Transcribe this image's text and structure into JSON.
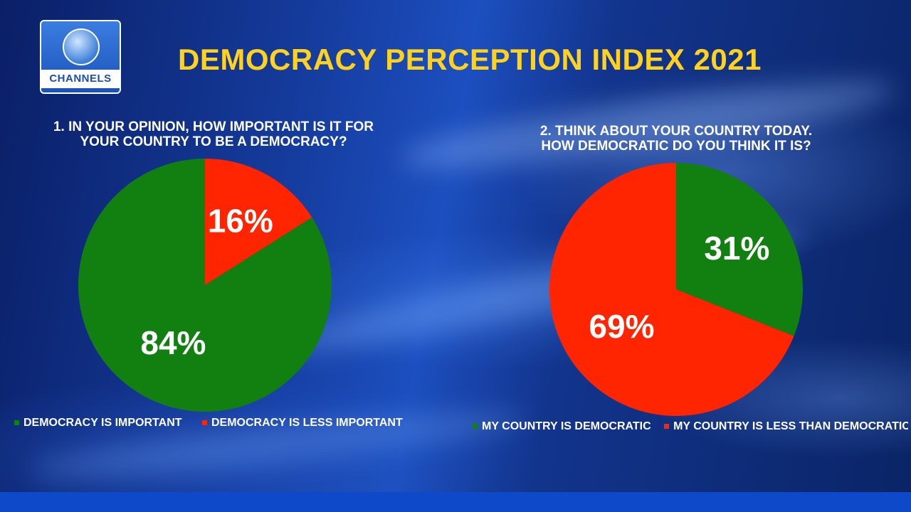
{
  "header": {
    "logo_text": "CHANNELS",
    "title": "DEMOCRACY PERCEPTION INDEX 2021"
  },
  "colors": {
    "title": "#ffd21f",
    "green": "#118011",
    "red": "#ff2500"
  },
  "chart_data": [
    {
      "type": "pie",
      "title": "1. IN YOUR OPINION, HOW IMPORTANT IS IT FOR YOUR COUNTRY TO BE A DEMOCRACY?",
      "title_lines": [
        "1. IN YOUR OPINION, HOW IMPORTANT IS IT FOR",
        "YOUR COUNTRY TO BE A DEMOCRACY?"
      ],
      "slices": [
        {
          "label": "DEMOCRACY IS LESS IMPORTANT",
          "value": 16,
          "value_label": "16%",
          "color": "#ff2500"
        },
        {
          "label": "DEMOCRACY IS IMPORTANT",
          "value": 84,
          "value_label": "84%",
          "color": "#118011"
        }
      ],
      "legend": [
        {
          "label": "DEMOCRACY IS IMPORTANT",
          "color": "#118011"
        },
        {
          "label": "DEMOCRACY IS LESS IMPORTANT",
          "color": "#ff2500"
        }
      ]
    },
    {
      "type": "pie",
      "title": "2. THINK ABOUT YOUR COUNTRY TODAY. HOW DEMOCRATIC DO YOU THINK IT IS?",
      "title_lines": [
        "2. THINK ABOUT YOUR COUNTRY TODAY.",
        "HOW DEMOCRATIC DO YOU THINK IT IS?"
      ],
      "slices": [
        {
          "label": "MY COUNTRY IS DEMOCRATIC",
          "value": 31,
          "value_label": "31%",
          "color": "#118011"
        },
        {
          "label": "MY COUNTRY IS LESS THAN DEMOCRATIC",
          "value": 69,
          "value_label": "69%",
          "color": "#ff2500"
        }
      ],
      "legend": [
        {
          "label": "MY COUNTRY IS DEMOCRATIC",
          "color": "#118011"
        },
        {
          "label": "MY COUNTRY IS LESS THAN DEMOCRATIC",
          "color": "#ff2500"
        }
      ]
    }
  ]
}
